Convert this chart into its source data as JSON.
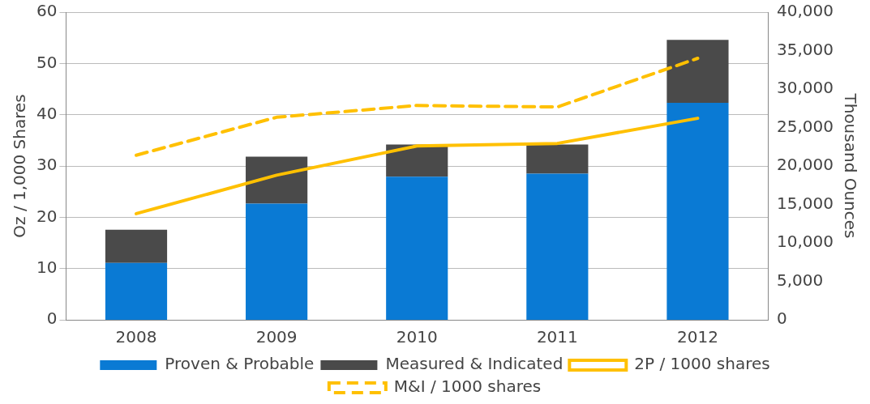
{
  "chart_data": {
    "type": "bar",
    "stacked": true,
    "categories": [
      "2008",
      "2009",
      "2010",
      "2011",
      "2012"
    ],
    "series": [
      {
        "name": "Proven & Probable",
        "axis": "y2",
        "color": "#0a7ad4",
        "values": [
          7400,
          15100,
          18600,
          19000,
          28200
        ]
      },
      {
        "name": "Measured & Indicated",
        "axis": "y2",
        "color": "#4a4a4a",
        "values": [
          4300,
          6100,
          4200,
          3800,
          8200
        ]
      },
      {
        "name": "2P / 1000 shares",
        "type": "line",
        "axis": "y",
        "color": "#ffc000",
        "line_style": "solid",
        "values": [
          20.7,
          28.2,
          33.9,
          34.4,
          39.3
        ]
      },
      {
        "name": "M&I / 1000 shares",
        "type": "line",
        "axis": "y",
        "color": "#ffc000",
        "line_style": "dashed",
        "values": [
          32.1,
          39.5,
          41.8,
          41.5,
          51.0
        ]
      }
    ],
    "ylabel": "Oz / 1,000 Shares",
    "y2label": "Thousand Ounces",
    "ylim": [
      0,
      60
    ],
    "yticks": [
      0,
      10,
      20,
      30,
      40,
      50,
      60
    ],
    "y2lim": [
      0,
      40000
    ],
    "y2ticks": [
      {
        "value": 0,
        "label": "0"
      },
      {
        "value": 5000,
        "label": "5,000"
      },
      {
        "value": 10000,
        "label": "10,000"
      },
      {
        "value": 15000,
        "label": "15,000"
      },
      {
        "value": 20000,
        "label": "20,000"
      },
      {
        "value": 25000,
        "label": "25,000"
      },
      {
        "value": 30000,
        "label": "30,000"
      },
      {
        "value": 35000,
        "label": "35,000"
      },
      {
        "value": 40000,
        "label": "40,000"
      }
    ],
    "grid": "y",
    "legend": "bottom",
    "marker": "none"
  }
}
